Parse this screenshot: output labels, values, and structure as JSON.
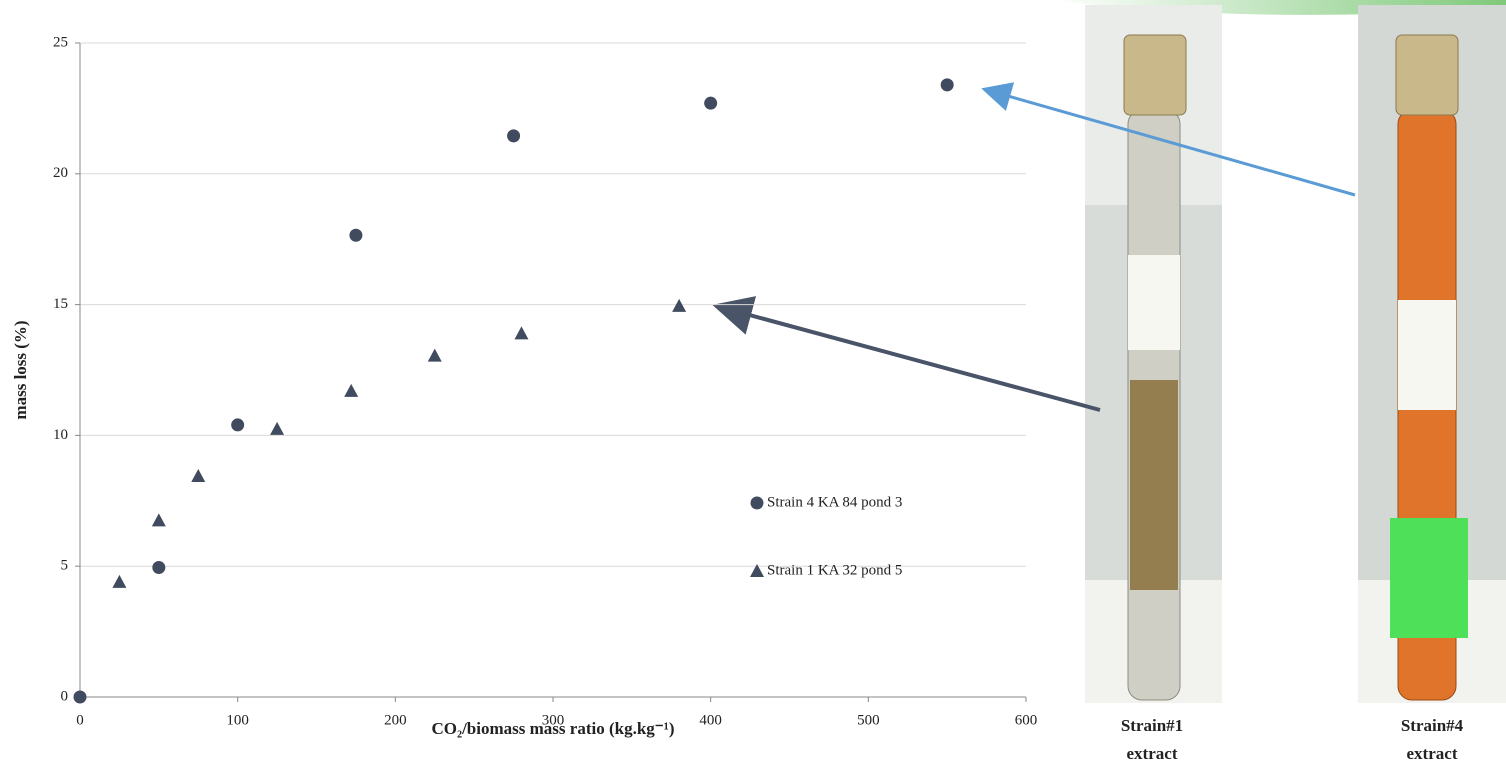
{
  "chart_data": {
    "type": "scatter",
    "xlabel": "CO₂/biomass mass ratio (kg.kg⁻¹)",
    "ylabel": "mass loss (%)",
    "xlim": [
      0,
      600
    ],
    "xticks": [
      0,
      100,
      200,
      300,
      400,
      500,
      600
    ],
    "ylim": [
      0,
      25
    ],
    "yticks": [
      0,
      5,
      10,
      15,
      20,
      25
    ],
    "grid": true,
    "series": [
      {
        "name": "Strain 4 KA 84 pond 3",
        "color": "#414b5f",
        "marker": "circle",
        "x": [
          0,
          50,
          100,
          175,
          275,
          400,
          550
        ],
        "values": [
          0,
          4.95,
          10.4,
          17.65,
          21.45,
          22.7,
          23.4
        ]
      },
      {
        "name": "Strain 1 KA 32 pond 5",
        "color": "#414b5f",
        "marker": "triangle",
        "x": [
          25,
          50,
          75,
          125,
          172,
          225,
          280,
          380
        ],
        "values": [
          4.4,
          6.75,
          8.45,
          10.25,
          11.7,
          13.05,
          13.9,
          14.95
        ]
      }
    ]
  },
  "photos": [
    {
      "caption": [
        "Strain#1",
        "extract"
      ]
    },
    {
      "caption": [
        "Strain#4",
        "extract"
      ]
    }
  ]
}
